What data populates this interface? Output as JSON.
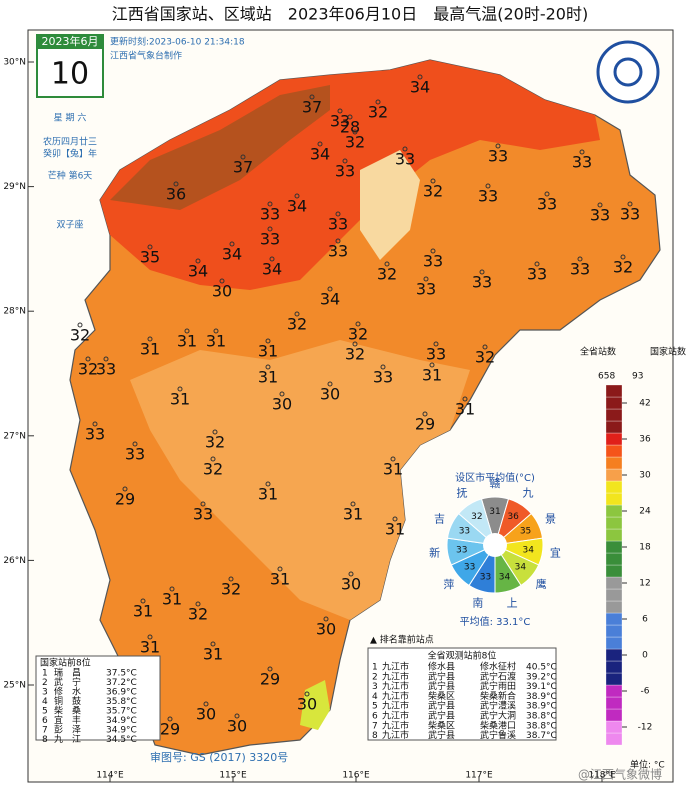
{
  "header": {
    "title": "江西省国家站、区域站　2023年06月10日　最高气温(20时-20时)",
    "update_time": "更新时刻:2023-06-10 21:34:18",
    "producer": "江西省气象台制作"
  },
  "calendar": {
    "month": "2023年6月",
    "day": "10",
    "weekday": "星 期 六",
    "lunar": "农历四月廿三",
    "year": "癸卯【兔】年",
    "solar_term": "芒种 第6天",
    "zodiac": "双子座"
  },
  "map": {
    "lat_ticks": [
      {
        "value": 30,
        "label": "30°N"
      },
      {
        "value": 29,
        "label": "29°N"
      },
      {
        "value": 28,
        "label": "28°N"
      },
      {
        "value": 27,
        "label": "27°N"
      },
      {
        "value": 26,
        "label": "26°N"
      },
      {
        "value": 25,
        "label": "25°N"
      }
    ],
    "lon_ticks": [
      {
        "value": 114,
        "label": "114°E"
      },
      {
        "value": 115,
        "label": "115°E"
      },
      {
        "value": 116,
        "label": "116°E"
      },
      {
        "value": 117,
        "label": "117°E"
      },
      {
        "value": 118,
        "label": "118°E"
      }
    ],
    "stations": [
      37,
      34,
      32,
      33,
      28,
      32,
      34,
      33,
      37,
      36,
      33,
      32,
      33,
      33,
      33,
      33,
      33,
      33,
      33,
      34,
      33,
      33,
      34,
      34,
      35,
      34,
      33,
      32,
      33,
      33,
      33,
      33,
      32,
      33,
      30,
      34,
      32,
      32,
      31,
      31,
      31,
      31,
      32,
      33,
      32,
      32,
      33,
      33,
      32,
      31,
      31,
      31,
      30,
      30,
      31,
      29,
      33,
      33,
      32,
      32,
      31,
      31,
      29,
      33,
      31,
      31,
      31,
      32,
      30,
      31,
      32,
      31,
      31,
      31,
      30,
      29,
      29,
      30,
      30,
      30
    ],
    "review_no": "审图号: GS (2017) 3320号",
    "watermark": "@江西气象微博"
  },
  "legend": {
    "province_label": "全省站数",
    "province_count": "658",
    "national_label": "国家站数",
    "national_count": "93",
    "ticks": [
      42,
      36,
      30,
      24,
      18,
      12,
      6,
      0,
      -6,
      -12
    ],
    "range": [
      -15,
      45
    ],
    "unit": "单位: °C"
  },
  "city_average": {
    "title": "设区市平均值(°C)",
    "categories": [
      "赣",
      "九",
      "景",
      "宜",
      "鹰",
      "上",
      "南",
      "萍",
      "新",
      "吉",
      "抚"
    ],
    "values": [
      31,
      36,
      35,
      34,
      34,
      34,
      33,
      33,
      33,
      33,
      32
    ],
    "colors": [
      "#8c8c8c",
      "#f05a28",
      "#f7a21b",
      "#f2e51e",
      "#c8e03c",
      "#66b545",
      "#2f7fd8",
      "#3fa7e8",
      "#6cc4ee",
      "#9ad8f2",
      "#c2e8f6"
    ],
    "average": "平均值: 33.1°C"
  },
  "national_top8": {
    "title": "国家站前8位",
    "rows": [
      [
        "1",
        "瑞　昌",
        "37.5°C"
      ],
      [
        "2",
        "武　宁",
        "37.2°C"
      ],
      [
        "3",
        "修　水",
        "36.9°C"
      ],
      [
        "4",
        "铜　鼓",
        "35.8°C"
      ],
      [
        "5",
        "柴　桑",
        "35.7°C"
      ],
      [
        "6",
        "宜　丰",
        "34.9°C"
      ],
      [
        "7",
        "彭　泽",
        "34.9°C"
      ],
      [
        "8",
        "九　江",
        "34.5°C"
      ]
    ]
  },
  "all_top8": {
    "marker": "▲ 排名靠前站点",
    "title": "全省观测站前8位",
    "rows": [
      [
        "1",
        "九江市",
        "修水县",
        "修水征村",
        "40.5°C"
      ],
      [
        "2",
        "九江市",
        "武宁县",
        "武宁石渡",
        "39.2°C"
      ],
      [
        "3",
        "九江市",
        "武宁县",
        "武宁雨田",
        "39.1°C"
      ],
      [
        "4",
        "九江市",
        "柴桑区",
        "柴桑新合",
        "38.9°C"
      ],
      [
        "5",
        "九江市",
        "武宁县",
        "武宁澧溪",
        "38.9°C"
      ],
      [
        "6",
        "九江市",
        "武宁县",
        "武宁大洞",
        "38.8°C"
      ],
      [
        "7",
        "九江市",
        "柴桑区",
        "柴桑港口",
        "38.8°C"
      ],
      [
        "8",
        "九江市",
        "武宁县",
        "武宁鲁溪",
        "38.7°C"
      ]
    ]
  }
}
